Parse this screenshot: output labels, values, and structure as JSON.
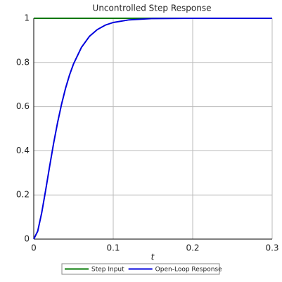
{
  "chart_data": {
    "type": "line",
    "title": "Uncontrolled Step Response",
    "x_label": "t",
    "x": [
      0,
      0.005,
      0.01,
      0.015,
      0.02,
      0.025,
      0.03,
      0.035,
      0.04,
      0.045,
      0.05,
      0.06,
      0.07,
      0.08,
      0.09,
      0.1,
      0.12,
      0.15,
      0.2,
      0.3
    ],
    "series": [
      {
        "name": "Step Input",
        "color": "#007700",
        "values": [
          1,
          1,
          1,
          1,
          1,
          1,
          1,
          1,
          1,
          1,
          1,
          1,
          1,
          1,
          1,
          1,
          1,
          1,
          1,
          1
        ]
      },
      {
        "name": "Open-Loop Response",
        "color": "#0000dd",
        "values": [
          0,
          0.036,
          0.119,
          0.222,
          0.33,
          0.434,
          0.528,
          0.611,
          0.683,
          0.743,
          0.793,
          0.868,
          0.918,
          0.949,
          0.969,
          0.981,
          0.993,
          0.999,
          1,
          1
        ]
      }
    ],
    "xlim": [
      0,
      0.3
    ],
    "xticks": [
      0,
      0.1,
      0.2,
      0.3
    ],
    "ylim": [
      0,
      1
    ],
    "yticks": [
      0,
      0.2,
      0.4,
      0.6,
      0.8,
      1
    ],
    "grid": true,
    "legend": "bottom"
  }
}
